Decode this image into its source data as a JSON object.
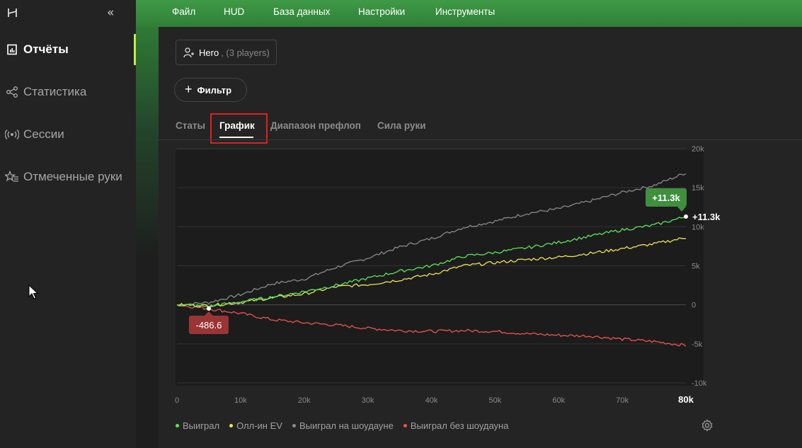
{
  "sidebar": {
    "items": [
      {
        "label": "Отчёты",
        "icon": "report-icon"
      },
      {
        "label": "Статистика",
        "icon": "graph-nodes-icon"
      },
      {
        "label": "Сессии",
        "icon": "broadcast-icon"
      },
      {
        "label": "Отмеченные руки",
        "icon": "star-list-icon"
      }
    ]
  },
  "menu": [
    "Файл",
    "HUD",
    "База данных",
    "Настройки",
    "Инструменты"
  ],
  "hero": {
    "name": "Hero",
    "players": ", (3 players)"
  },
  "filter": {
    "label": "Фильтр"
  },
  "tabs": [
    "Статы",
    "График",
    "Диапазон префлоп",
    "Сила руки"
  ],
  "active_tab": "График",
  "colors": {
    "accent": "#c5e84a",
    "topbar": "#3a8f41",
    "won": "#5de35d",
    "allin_ev": "#e8e35a",
    "showdown": "#8a8a8a",
    "non_showdown": "#f05252",
    "badge_positive": "#3f8f3f",
    "badge_negative": "#9a3535"
  },
  "chart_data": {
    "type": "line",
    "x_ticks": [
      "0",
      "10k",
      "20k",
      "30k",
      "40k",
      "50k",
      "60k",
      "70k",
      "80k"
    ],
    "y_ticks": [
      "20k",
      "15k",
      "10k",
      "5k",
      "0",
      "-5k",
      "-10k"
    ],
    "xlim": [
      0,
      80000
    ],
    "ylim": [
      -10000,
      20000
    ],
    "grid": true,
    "legend_position": "bottom-left",
    "x": [
      0,
      5000,
      10000,
      15000,
      20000,
      25000,
      30000,
      35000,
      40000,
      45000,
      50000,
      55000,
      60000,
      65000,
      70000,
      75000,
      80000
    ],
    "series": [
      {
        "name": "Выиграл",
        "color": "#5de35d",
        "values": [
          0,
          -200,
          400,
          1000,
          1700,
          2500,
          3400,
          4300,
          5000,
          6200,
          6700,
          7300,
          8000,
          8800,
          9600,
          10200,
          11300
        ]
      },
      {
        "name": "Олл-ин EV",
        "color": "#e8e35a",
        "values": [
          0,
          -100,
          300,
          900,
          1400,
          2300,
          2600,
          3200,
          3900,
          5000,
          5400,
          5800,
          6100,
          6600,
          7200,
          7800,
          8600
        ]
      },
      {
        "name": "Выиграл на шоудауне",
        "color": "#8a8a8a",
        "values": [
          0,
          300,
          1300,
          2700,
          3300,
          4800,
          6000,
          7400,
          8500,
          9900,
          10700,
          11700,
          12300,
          13300,
          14400,
          15300,
          16900
        ]
      },
      {
        "name": "Выиграл без шоудауна",
        "color": "#f05252",
        "values": [
          0,
          -500,
          -1100,
          -1900,
          -2300,
          -2600,
          -3000,
          -3300,
          -3400,
          -3300,
          -3400,
          -3700,
          -3900,
          -4000,
          -4400,
          -4700,
          -5200
        ]
      }
    ],
    "annotations": [
      {
        "text": "+11.3k",
        "x": 80000,
        "y": 11300
      },
      {
        "text": "-486.6",
        "x": 5000,
        "y": -486.6
      }
    ],
    "end_label": "+11.3k",
    "x_end_label": "80k"
  }
}
